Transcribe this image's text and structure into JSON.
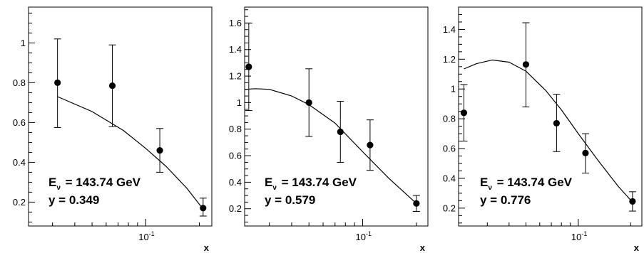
{
  "chart_data": [
    {
      "type": "scatter",
      "xlabel": "x",
      "ylabel": "",
      "x_scale": "log",
      "xlim": [
        0.022,
        0.235
      ],
      "ylim": [
        0.08,
        1.18
      ],
      "yticks": [
        0.2,
        0.4,
        0.6,
        0.8,
        1.0
      ],
      "ytick_labels": [
        "0.2",
        "0.4",
        "0.6",
        "0.8",
        "1"
      ],
      "xtick_labels": [
        "10",
        "-1"
      ],
      "annotation": {
        "energy_prefix": "E",
        "energy_sub": "ν",
        "energy_value": "= 143.74 GeV",
        "y_text": "y = 0.349"
      },
      "points": [
        {
          "x": 0.032,
          "y": 0.8,
          "err_low": 0.575,
          "err_high": 1.02
        },
        {
          "x": 0.065,
          "y": 0.785,
          "err_low": 0.58,
          "err_high": 0.99
        },
        {
          "x": 0.12,
          "y": 0.46,
          "err_low": 0.35,
          "err_high": 0.57
        },
        {
          "x": 0.21,
          "y": 0.17,
          "err_low": 0.13,
          "err_high": 0.22
        }
      ],
      "curve": {
        "x": [
          0.032,
          0.05,
          0.075,
          0.1,
          0.13,
          0.17,
          0.21
        ],
        "y": [
          0.73,
          0.655,
          0.56,
          0.47,
          0.38,
          0.27,
          0.165
        ]
      },
      "grid": false,
      "legend": "none"
    },
    {
      "type": "scatter",
      "xlabel": "x",
      "ylabel": "",
      "x_scale": "log",
      "xlim": [
        0.0218,
        0.232
      ],
      "ylim": [
        0.07,
        1.72
      ],
      "yticks": [
        0.2,
        0.4,
        0.6,
        0.8,
        1.0,
        1.2,
        1.4,
        1.6
      ],
      "ytick_labels": [
        "0.2",
        "0.4",
        "0.6",
        "0.8",
        "1",
        "1.2",
        "1.4",
        "1.6"
      ],
      "xtick_labels": [
        "10",
        "-1"
      ],
      "annotation": {
        "energy_prefix": "E",
        "energy_sub": "ν",
        "energy_value": "= 143.74 GeV",
        "y_text": "y = 0.579"
      },
      "points": [
        {
          "x": 0.023,
          "y": 1.27,
          "err_low": 0.94,
          "err_high": 1.6
        },
        {
          "x": 0.05,
          "y": 1.0,
          "err_low": 0.745,
          "err_high": 1.255
        },
        {
          "x": 0.075,
          "y": 0.78,
          "err_low": 0.55,
          "err_high": 1.01
        },
        {
          "x": 0.11,
          "y": 0.68,
          "err_low": 0.49,
          "err_high": 0.87
        },
        {
          "x": 0.2,
          "y": 0.24,
          "err_low": 0.18,
          "err_high": 0.3
        }
      ],
      "curve": {
        "x": [
          0.022,
          0.025,
          0.03,
          0.04,
          0.05,
          0.07,
          0.1,
          0.14,
          0.2
        ],
        "y": [
          1.1,
          1.105,
          1.1,
          1.05,
          0.985,
          0.845,
          0.63,
          0.43,
          0.24
        ]
      },
      "grid": false,
      "legend": "none"
    },
    {
      "type": "scatter",
      "xlabel": "x",
      "ylabel": "",
      "x_scale": "log",
      "xlim": [
        0.0205,
        0.232
      ],
      "ylim": [
        0.08,
        1.55
      ],
      "yticks": [
        0.2,
        0.4,
        0.6,
        0.8,
        1.0,
        1.2,
        1.4
      ],
      "ytick_labels": [
        "0.2",
        "0.4",
        "0.6",
        "0.8",
        "1",
        "1.2",
        "1.4"
      ],
      "xtick_labels": [
        "10",
        "-1"
      ],
      "annotation": {
        "energy_prefix": "E",
        "energy_sub": "ν",
        "energy_value": "= 143.74 GeV",
        "y_text": "y = 0.776"
      },
      "points": [
        {
          "x": 0.022,
          "y": 0.84,
          "err_low": 0.65,
          "err_high": 1.03
        },
        {
          "x": 0.05,
          "y": 1.165,
          "err_low": 0.88,
          "err_high": 1.445
        },
        {
          "x": 0.075,
          "y": 0.77,
          "err_low": 0.58,
          "err_high": 0.965
        },
        {
          "x": 0.11,
          "y": 0.57,
          "err_low": 0.435,
          "err_high": 0.7
        },
        {
          "x": 0.205,
          "y": 0.245,
          "err_low": 0.18,
          "err_high": 0.31
        }
      ],
      "curve": {
        "x": [
          0.022,
          0.026,
          0.032,
          0.04,
          0.05,
          0.065,
          0.08,
          0.1,
          0.13,
          0.17,
          0.205
        ],
        "y": [
          1.135,
          1.17,
          1.195,
          1.18,
          1.12,
          0.99,
          0.86,
          0.7,
          0.52,
          0.345,
          0.24
        ]
      },
      "grid": false,
      "legend": "none"
    }
  ]
}
